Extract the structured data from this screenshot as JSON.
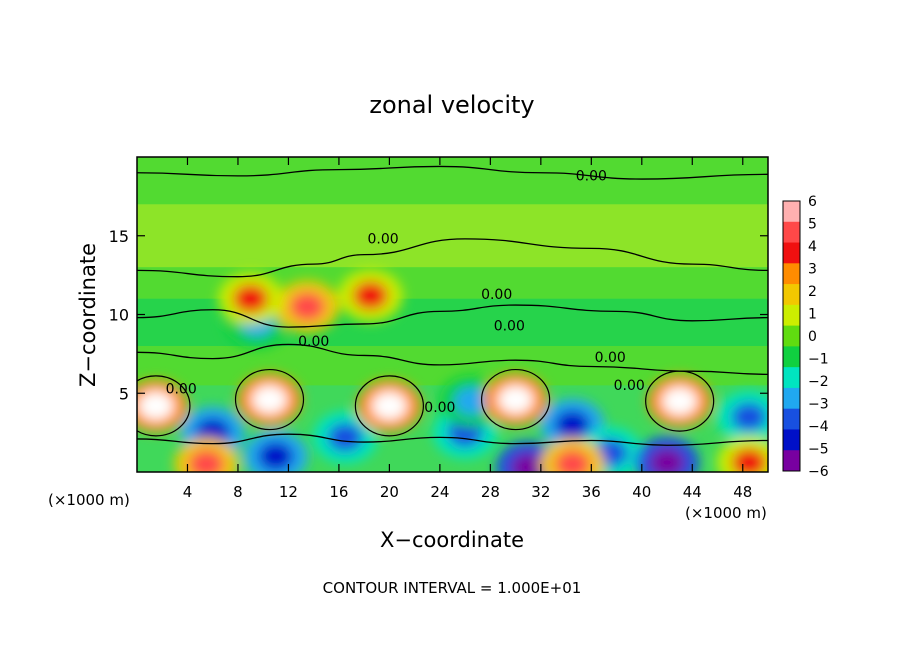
{
  "chart_data": {
    "type": "heatmap",
    "title": "zonal velocity",
    "xlabel": "X−coordinate",
    "ylabel": "Z−coordinate",
    "x_unit_left": "(×1000 m)",
    "x_unit_right": "(×1000 m)",
    "footer": "CONTOUR INTERVAL = 1.000E+01",
    "xlim": [
      0,
      50
    ],
    "ylim": [
      0,
      20
    ],
    "x_ticks": [
      4,
      8,
      12,
      16,
      20,
      24,
      28,
      32,
      36,
      40,
      44,
      48
    ],
    "x_tick_labels": [
      "4",
      "8",
      "12",
      "16",
      "20",
      "24",
      "28",
      "32",
      "36",
      "40",
      "44",
      "48"
    ],
    "y_ticks": [
      5,
      10,
      15
    ],
    "y_tick_labels": [
      "5",
      "10",
      "15"
    ],
    "colorbar": {
      "min": -6,
      "max": 6,
      "tick_labels": [
        "6",
        "5",
        "4",
        "3",
        "2",
        "1",
        "0",
        "−1",
        "−2",
        "−3",
        "−4",
        "−5",
        "−6"
      ],
      "colors": [
        "#ffb0b0",
        "#ff4848",
        "#f01010",
        "#ff8c00",
        "#f2c800",
        "#ccee00",
        "#60dc10",
        "#10d040",
        "#00e4c0",
        "#20a8f0",
        "#1850e0",
        "#0010c8",
        "#7800a0"
      ]
    },
    "contour_labels": [
      {
        "text": "0.00",
        "x": 36,
        "z": 18.5
      },
      {
        "text": "0.00",
        "x": 19.5,
        "z": 14.5
      },
      {
        "text": "0.00",
        "x": 28.5,
        "z": 11
      },
      {
        "text": "0.00",
        "x": 29.5,
        "z": 9
      },
      {
        "text": "0.00",
        "x": 14,
        "z": 8
      },
      {
        "text": "0.00",
        "x": 37.5,
        "z": 7
      },
      {
        "text": "0.00",
        "x": 3.5,
        "z": 5
      },
      {
        "text": "0.00",
        "x": 24,
        "z": 3.8
      },
      {
        "text": "0.00",
        "x": 39,
        "z": 5.2
      }
    ],
    "cells_high": [
      {
        "x": 1.5,
        "z": 4.2,
        "v": 6
      },
      {
        "x": 10.5,
        "z": 4.6,
        "v": 6
      },
      {
        "x": 20,
        "z": 4.2,
        "v": 6
      },
      {
        "x": 30,
        "z": 4.6,
        "v": 6
      },
      {
        "x": 43,
        "z": 4.5,
        "v": 6
      },
      {
        "x": 13.5,
        "z": 10.5,
        "v": 5
      },
      {
        "x": 18.5,
        "z": 11.2,
        "v": 4
      },
      {
        "x": 9,
        "z": 11,
        "v": 4
      },
      {
        "x": 5.5,
        "z": 0.5,
        "v": 5
      },
      {
        "x": 34.5,
        "z": 0.5,
        "v": 5
      },
      {
        "x": 48.5,
        "z": 0.6,
        "v": 4
      }
    ],
    "cells_low": [
      {
        "x": 6,
        "z": 2.5,
        "v": -5
      },
      {
        "x": 11,
        "z": 1,
        "v": -5
      },
      {
        "x": 16.5,
        "z": 2.2,
        "v": -4
      },
      {
        "x": 26,
        "z": 2.5,
        "v": -4
      },
      {
        "x": 34.5,
        "z": 3,
        "v": -5
      },
      {
        "x": 37.5,
        "z": 1.2,
        "v": -4
      },
      {
        "x": 42,
        "z": 0.6,
        "v": -6
      },
      {
        "x": 48.5,
        "z": 3.5,
        "v": -4
      },
      {
        "x": 31,
        "z": 0.3,
        "v": -6
      },
      {
        "x": 26.5,
        "z": 4.5,
        "v": -3
      },
      {
        "x": 9.5,
        "z": 9.5,
        "v": -3
      }
    ]
  }
}
